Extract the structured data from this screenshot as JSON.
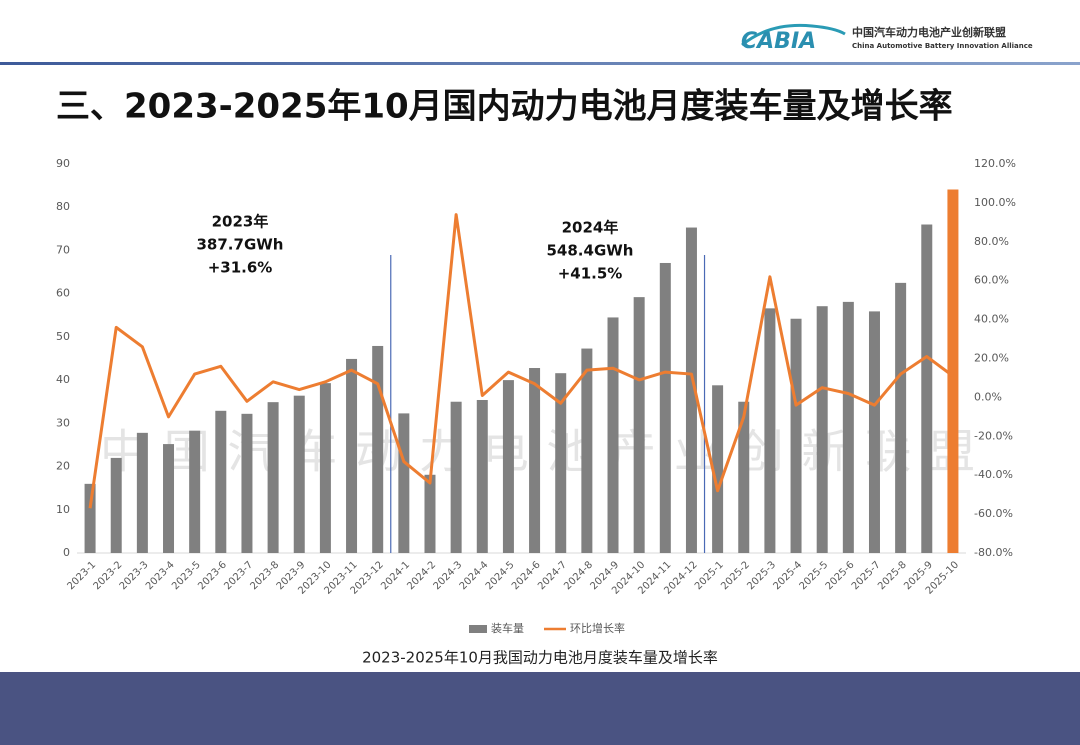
{
  "header": {
    "logo": "CABIA",
    "org_cn": "中国汽车动力电池产业创新联盟",
    "org_en": "China Automotive Battery Innovation Alliance"
  },
  "slide_title": "三、2023-2025年10月国内动力电池月度装车量及增长率",
  "chart_data": {
    "type": "bar",
    "categories": [
      "2023-1",
      "2023-2",
      "2023-3",
      "2023-4",
      "2023-5",
      "2023-6",
      "2023-7",
      "2023-8",
      "2023-9",
      "2023-10",
      "2023-11",
      "2023-12",
      "2024-1",
      "2024-2",
      "2024-3",
      "2024-4",
      "2024-5",
      "2024-6",
      "2024-7",
      "2024-8",
      "2024-9",
      "2024-10",
      "2024-11",
      "2024-12",
      "2025-1",
      "2025-2",
      "2025-3",
      "2025-4",
      "2025-5",
      "2025-6",
      "2025-7",
      "2025-8",
      "2025-9",
      "2025-10"
    ],
    "series": [
      {
        "name": "装车量",
        "color": "#808080",
        "colors": [
          "#808080",
          "#808080",
          "#808080",
          "#808080",
          "#808080",
          "#808080",
          "#808080",
          "#808080",
          "#808080",
          "#808080",
          "#808080",
          "#808080",
          "#808080",
          "#808080",
          "#808080",
          "#808080",
          "#808080",
          "#808080",
          "#808080",
          "#808080",
          "#808080",
          "#808080",
          "#808080",
          "#808080",
          "#808080",
          "#808080",
          "#808080",
          "#808080",
          "#808080",
          "#808080",
          "#808080",
          "#808080",
          "#808080",
          "#ed7d31"
        ],
        "values": [
          16,
          22,
          27.8,
          25.2,
          28.3,
          32.9,
          32.2,
          34.9,
          36.4,
          39.3,
          44.9,
          47.9,
          32.3,
          18.1,
          35,
          35.4,
          40,
          42.8,
          41.6,
          47.3,
          54.5,
          59.2,
          67.1,
          75.3,
          38.8,
          35,
          56.6,
          54.2,
          57.1,
          58.1,
          55.9,
          62.5,
          76,
          84.1
        ]
      },
      {
        "name": "环比增长率",
        "color": "#ed7d31",
        "axis": "y2",
        "type": "line",
        "values": [
          -57,
          36,
          26,
          -10,
          12,
          16,
          -2,
          8,
          4,
          8,
          14,
          7,
          -33,
          -44,
          94,
          1,
          13,
          7,
          -3,
          14,
          15,
          9,
          13,
          12,
          -48,
          -10,
          62,
          -4,
          5,
          2,
          -4,
          12,
          21,
          11
        ]
      }
    ],
    "ylim": [
      0,
      90
    ],
    "yticks": [
      0,
      10,
      20,
      30,
      40,
      50,
      60,
      70,
      80,
      90
    ],
    "y2lim": [
      -80,
      120
    ],
    "y2ticks": [
      {
        "value": -80,
        "label": "-80.0%"
      },
      {
        "value": -60,
        "label": "-60.0%"
      },
      {
        "value": -40,
        "label": "-40.0%"
      },
      {
        "value": -20,
        "label": "-20.0%"
      },
      {
        "value": 0,
        "label": "0.0%"
      },
      {
        "value": 20,
        "label": "20.0%"
      },
      {
        "value": 40,
        "label": "40.0%"
      },
      {
        "value": 60,
        "label": "60.0%"
      },
      {
        "value": 80,
        "label": "80.0%"
      },
      {
        "value": 100,
        "label": "100.0%"
      },
      {
        "value": 120,
        "label": "120.0%"
      }
    ],
    "annotations": [
      [
        "2023年",
        "387.7GWh",
        "+31.6%"
      ],
      [
        "2024年",
        "548.4GWh",
        "+41.5%"
      ]
    ],
    "watermark": "中国汽车动力电池产业创新联盟",
    "legend": "bottom"
  },
  "caption": "2023-2025年10月我国动力电池月度装车量及增长率"
}
